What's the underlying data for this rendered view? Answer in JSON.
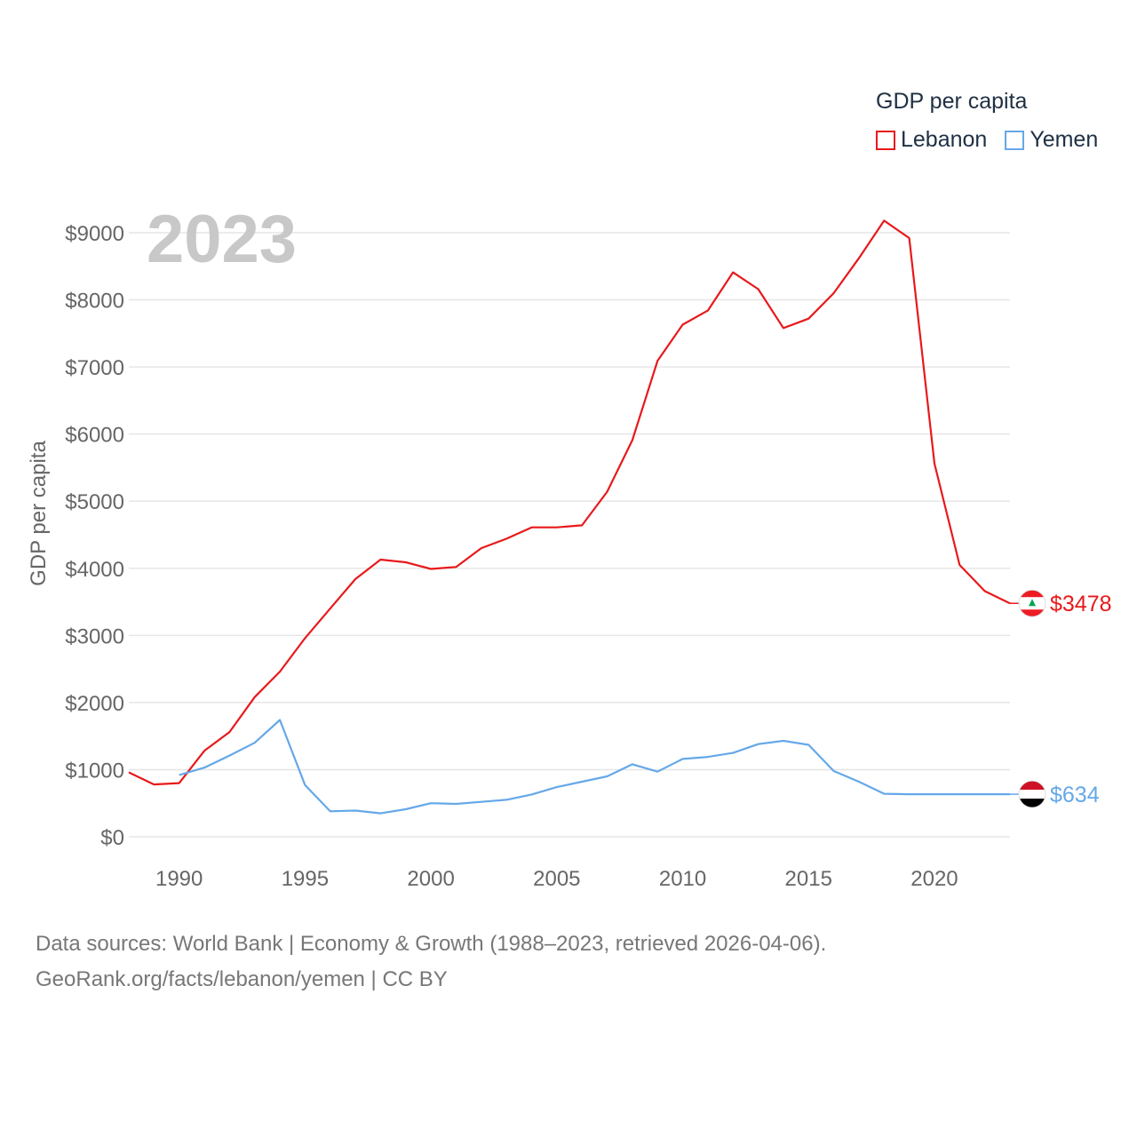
{
  "legend": {
    "title": "GDP per capita",
    "items": [
      {
        "name": "Lebanon",
        "color": "#e8191b"
      },
      {
        "name": "Yemen",
        "color": "#65a8e8"
      }
    ]
  },
  "year_label": "2023",
  "footer": {
    "line1": "Data sources: World Bank | Economy & Growth (1988–2023, retrieved 2026-04-06).",
    "line2": "GeoRank.org/facts/lebanon/yemen | CC BY"
  },
  "chart_data": {
    "type": "line",
    "title": "GDP per capita",
    "xlabel": "",
    "ylabel": "GDP per capita",
    "xlim": [
      1988,
      2023
    ],
    "ylim": [
      0,
      9500
    ],
    "grid": true,
    "legend_position": "top-right",
    "x_ticks": [
      1990,
      1995,
      2000,
      2005,
      2010,
      2015,
      2020
    ],
    "x_tick_labels": [
      "1990",
      "1995",
      "2000",
      "2005",
      "2010",
      "2015",
      "2020"
    ],
    "y_ticks": [
      0,
      1000,
      2000,
      3000,
      4000,
      5000,
      6000,
      7000,
      8000,
      9000
    ],
    "y_tick_labels": [
      "$0",
      "$1000",
      "$2000",
      "$3000",
      "$4000",
      "$5000",
      "$6000",
      "$7000",
      "$8000",
      "$9000"
    ],
    "series": [
      {
        "name": "Lebanon",
        "color": "#e8191b",
        "end_label": "$3478",
        "x": [
          1988,
          1989,
          1990,
          1991,
          1992,
          1993,
          1994,
          1995,
          1996,
          1997,
          1998,
          1999,
          2000,
          2001,
          2002,
          2003,
          2004,
          2005,
          2006,
          2007,
          2008,
          2009,
          2010,
          2011,
          2012,
          2013,
          2014,
          2015,
          2016,
          2017,
          2018,
          2019,
          2020,
          2021,
          2022,
          2023
        ],
        "values": [
          960,
          780,
          800,
          1280,
          1560,
          2080,
          2460,
          2960,
          3400,
          3840,
          4130,
          4090,
          3990,
          4020,
          4300,
          4440,
          4610,
          4610,
          4640,
          5140,
          5910,
          7090,
          7630,
          7840,
          8410,
          8160,
          7580,
          7720,
          8100,
          8620,
          9180,
          8920,
          5560,
          4050,
          3660,
          3478
        ]
      },
      {
        "name": "Yemen",
        "color": "#65a8e8",
        "end_label": "$634",
        "x": [
          1990,
          1991,
          1992,
          1993,
          1994,
          1995,
          1996,
          1997,
          1998,
          1999,
          2000,
          2001,
          2002,
          2003,
          2004,
          2005,
          2006,
          2007,
          2008,
          2009,
          2010,
          2011,
          2012,
          2013,
          2014,
          2015,
          2016,
          2017,
          2018,
          2019,
          2020,
          2021,
          2022,
          2023
        ],
        "values": [
          920,
          1030,
          1210,
          1400,
          1740,
          770,
          380,
          390,
          350,
          410,
          500,
          490,
          520,
          550,
          630,
          740,
          820,
          900,
          1080,
          970,
          1160,
          1190,
          1250,
          1380,
          1430,
          1370,
          980,
          820,
          640,
          634,
          634,
          634,
          634,
          634
        ]
      }
    ]
  }
}
